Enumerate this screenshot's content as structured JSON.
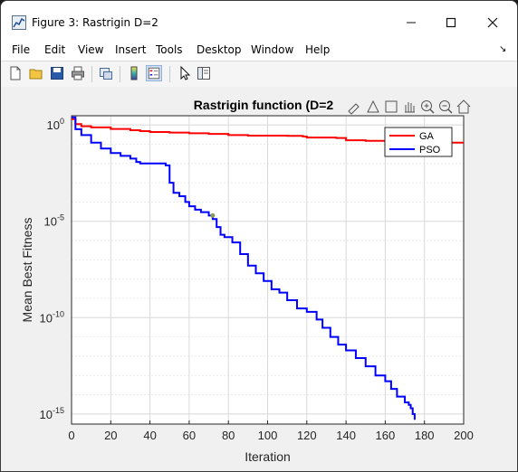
{
  "window": {
    "title": "Figure 3: Rastrigin D=2"
  },
  "menu": {
    "items": [
      "File",
      "Edit",
      "View",
      "Insert",
      "Tools",
      "Desktop",
      "Window",
      "Help"
    ]
  },
  "toolbar": {
    "icons": [
      "new-figure-icon",
      "open-file-icon",
      "save-icon",
      "print-icon",
      "link-plot-icon",
      "colorbar-icon",
      "legend-icon",
      "pointer-icon",
      "property-inspector-icon"
    ]
  },
  "axes_toolbar": {
    "icons": [
      "brush-icon",
      "datatip-icon",
      "rotate-icon",
      "pan-icon",
      "zoom-in-icon",
      "zoom-out-icon",
      "home-icon"
    ]
  },
  "colors": {
    "ga": "#ff0000",
    "pso": "#0000ff",
    "grid": "#dedede"
  },
  "chart_data": {
    "type": "line",
    "title": "Rastrigin function (D=2",
    "xlabel": "Iteration",
    "ylabel": "Mean Best Fitness",
    "xlim": [
      0,
      200
    ],
    "ylim": [
      3e-16,
      3
    ],
    "yscale": "log",
    "xticks": [
      "0",
      "20",
      "40",
      "60",
      "80",
      "100",
      "120",
      "140",
      "160",
      "180",
      "200"
    ],
    "yticks": [
      {
        "value": 1,
        "label": "10",
        "exp": "0"
      },
      {
        "value": 1e-05,
        "label": "10",
        "exp": "-5"
      },
      {
        "value": 1e-10,
        "label": "10",
        "exp": "-10"
      },
      {
        "value": 1e-15,
        "label": "10",
        "exp": "-15"
      }
    ],
    "grid": true,
    "legend": "top-right",
    "series": [
      {
        "name": "GA",
        "color": "#ff0000",
        "x": [
          0,
          2,
          5,
          10,
          20,
          30,
          35,
          40,
          50,
          60,
          70,
          80,
          90,
          100,
          110,
          118,
          120,
          135,
          140,
          150,
          160,
          180,
          190,
          200
        ],
        "y": [
          2.0,
          1.1,
          0.85,
          0.75,
          0.62,
          0.53,
          0.48,
          0.43,
          0.4,
          0.37,
          0.34,
          0.3,
          0.28,
          0.28,
          0.27,
          0.25,
          0.22,
          0.21,
          0.16,
          0.15,
          0.14,
          0.13,
          0.12,
          0.12
        ]
      },
      {
        "name": "PSO",
        "color": "#0000ff",
        "x": [
          0,
          2,
          5,
          10,
          15,
          20,
          25,
          30,
          33,
          35,
          40,
          45,
          48,
          50,
          52,
          55,
          58,
          60,
          63,
          66,
          70,
          72,
          74,
          76,
          78,
          82,
          86,
          90,
          94,
          98,
          102,
          106,
          110,
          115,
          120,
          125,
          128,
          132,
          136,
          140,
          145,
          150,
          155,
          160,
          163,
          166,
          170,
          172,
          173,
          174,
          175
        ],
        "y": [
          2.5,
          0.6,
          0.3,
          0.12,
          0.06,
          0.035,
          0.025,
          0.018,
          0.012,
          0.01,
          0.01,
          0.01,
          0.008,
          0.001,
          0.0003,
          0.0002,
          0.0001,
          6e-05,
          4e-05,
          3e-05,
          2e-05,
          1.3e-05,
          5e-06,
          2e-06,
          1.5e-06,
          8e-07,
          2e-07,
          5e-08,
          2e-08,
          8e-09,
          3e-09,
          2e-09,
          8e-10,
          3e-10,
          2e-10,
          8e-11,
          3e-11,
          1e-11,
          4e-12,
          2e-12,
          8e-13,
          3e-13,
          1e-13,
          5e-14,
          2e-14,
          8e-15,
          4e-15,
          3e-15,
          2e-15,
          1e-15,
          5e-16
        ]
      }
    ],
    "marker": {
      "x": 72,
      "y": 2e-05,
      "color": "#8a9a5b"
    }
  }
}
